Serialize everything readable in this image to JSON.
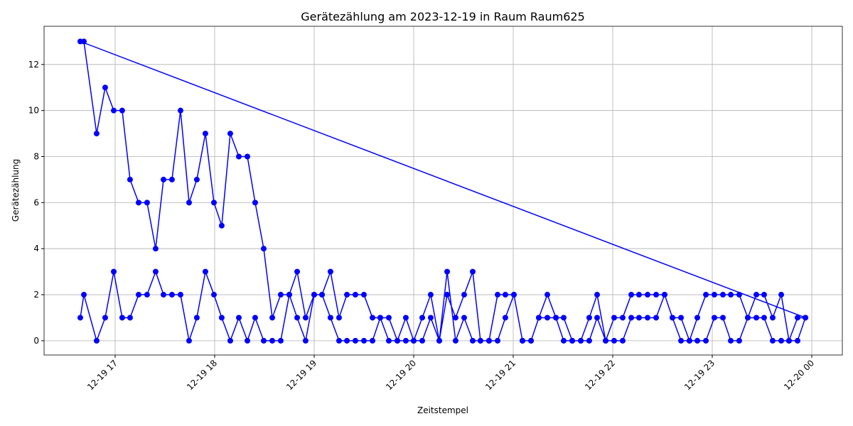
{
  "chart_data": {
    "type": "line",
    "title": "Gerätezählung am 2023-12-19 in Raum Raum625",
    "x_label": "Zeitstempel",
    "y_label": "Gerätezählung",
    "x": [
      16.65,
      16.686,
      16.814,
      16.9,
      16.986,
      17.071,
      17.15,
      17.236,
      17.321,
      17.407,
      17.486,
      17.571,
      17.657,
      17.743,
      17.821,
      17.907,
      17.993,
      18.071,
      18.157,
      18.243,
      18.329,
      18.407,
      18.493,
      18.579,
      18.664,
      18.75,
      18.829,
      18.914,
      19.0,
      19.079,
      19.164,
      19.25,
      19.329,
      19.414,
      19.5,
      19.586,
      19.664,
      19.75,
      19.836,
      19.921,
      20.0,
      20.086,
      20.171,
      20.257,
      20.336,
      20.421,
      20.507,
      20.593,
      20.671,
      20.757,
      20.843,
      20.921,
      21.007,
      21.093,
      21.179,
      21.257,
      21.343,
      21.429,
      21.507,
      21.593,
      21.679,
      21.764,
      21.843,
      21.929,
      22.014,
      22.1,
      22.186,
      22.264,
      22.35,
      22.436,
      22.521,
      22.6,
      22.686,
      22.771,
      22.85,
      22.936,
      23.021,
      23.107,
      23.186,
      23.271,
      23.357,
      23.443,
      23.521,
      23.607,
      23.693,
      23.771,
      23.857,
      23.936,
      16.65,
      16.686,
      16.814,
      16.9,
      16.986,
      17.071,
      17.15,
      17.236,
      17.321,
      17.407,
      17.486,
      17.571,
      17.657,
      17.743,
      17.821,
      17.907,
      17.993,
      18.071,
      18.157,
      18.243,
      18.329,
      18.407,
      18.493,
      18.579,
      18.664,
      18.75,
      18.829,
      18.914,
      19.0,
      19.079,
      19.164,
      19.25,
      19.329,
      19.414,
      19.5,
      19.586,
      19.664,
      19.75,
      19.836,
      19.921,
      20.0,
      20.086,
      20.171,
      20.257,
      20.336,
      20.421,
      20.507,
      20.593,
      20.671,
      20.757,
      20.843,
      20.921,
      21.007,
      21.093,
      21.179,
      21.257,
      21.343,
      21.429,
      21.507,
      21.593,
      21.679,
      21.764,
      21.843,
      21.929,
      22.014,
      22.1,
      22.186,
      22.264,
      22.35,
      22.436,
      22.521,
      22.6,
      22.686,
      22.771,
      22.85,
      22.936,
      23.021,
      23.107,
      23.186,
      23.271,
      23.357,
      23.443,
      23.521,
      23.607,
      23.693,
      23.771,
      23.857,
      23.936
    ],
    "series": [
      {
        "color": "#0000ff",
        "values": [
          1,
          2,
          0,
          1,
          3,
          1,
          1,
          2,
          2,
          3,
          2,
          2,
          2,
          0,
          1,
          3,
          2,
          1,
          0,
          1,
          0,
          1,
          0,
          0,
          0,
          2,
          1,
          0,
          2,
          2,
          1,
          0,
          0,
          0,
          0,
          0,
          1,
          0,
          0,
          1,
          0,
          0,
          1,
          0,
          3,
          0,
          1,
          0,
          0,
          0,
          0,
          1,
          2,
          0,
          0,
          1,
          1,
          1,
          0,
          0,
          0,
          0,
          1,
          0,
          0,
          0,
          1,
          1,
          1,
          1,
          2,
          1,
          0,
          0,
          0,
          0,
          1,
          1,
          0,
          0,
          1,
          1,
          1,
          0,
          0,
          0,
          0,
          1,
          13,
          13,
          9,
          11,
          10,
          10,
          7,
          6,
          6,
          4,
          7,
          7,
          10,
          6,
          7,
          9,
          6,
          5,
          9,
          8,
          8,
          6,
          4,
          1,
          2,
          2,
          3,
          1,
          2,
          2,
          3,
          1,
          2,
          2,
          2,
          1,
          1,
          1,
          0,
          0,
          0,
          1,
          2,
          0,
          2,
          1,
          2,
          3,
          0,
          0,
          2,
          2,
          2,
          0,
          0,
          1,
          2,
          1,
          1,
          0,
          0,
          1,
          2,
          0,
          1,
          1,
          2,
          2,
          2,
          2,
          2,
          1,
          1,
          0,
          1,
          2,
          2,
          2,
          2,
          2,
          1,
          2,
          2,
          1,
          2,
          0,
          1,
          1
        ]
      }
    ],
    "xlim": [
      16.286,
      24.307
    ],
    "ylim": [
      -0.62,
      13.66
    ],
    "xticks": [
      {
        "value": 17,
        "label": "12-19 17"
      },
      {
        "value": 18,
        "label": "12-19 18"
      },
      {
        "value": 19,
        "label": "12-19 19"
      },
      {
        "value": 20,
        "label": "12-19 20"
      },
      {
        "value": 21,
        "label": "12-19 21"
      },
      {
        "value": 22,
        "label": "12-19 22"
      },
      {
        "value": 23,
        "label": "12-19 23"
      },
      {
        "value": 24,
        "label": "12-20 00"
      }
    ],
    "yticks": [
      0,
      2,
      4,
      6,
      8,
      10,
      12
    ],
    "grid": true
  }
}
